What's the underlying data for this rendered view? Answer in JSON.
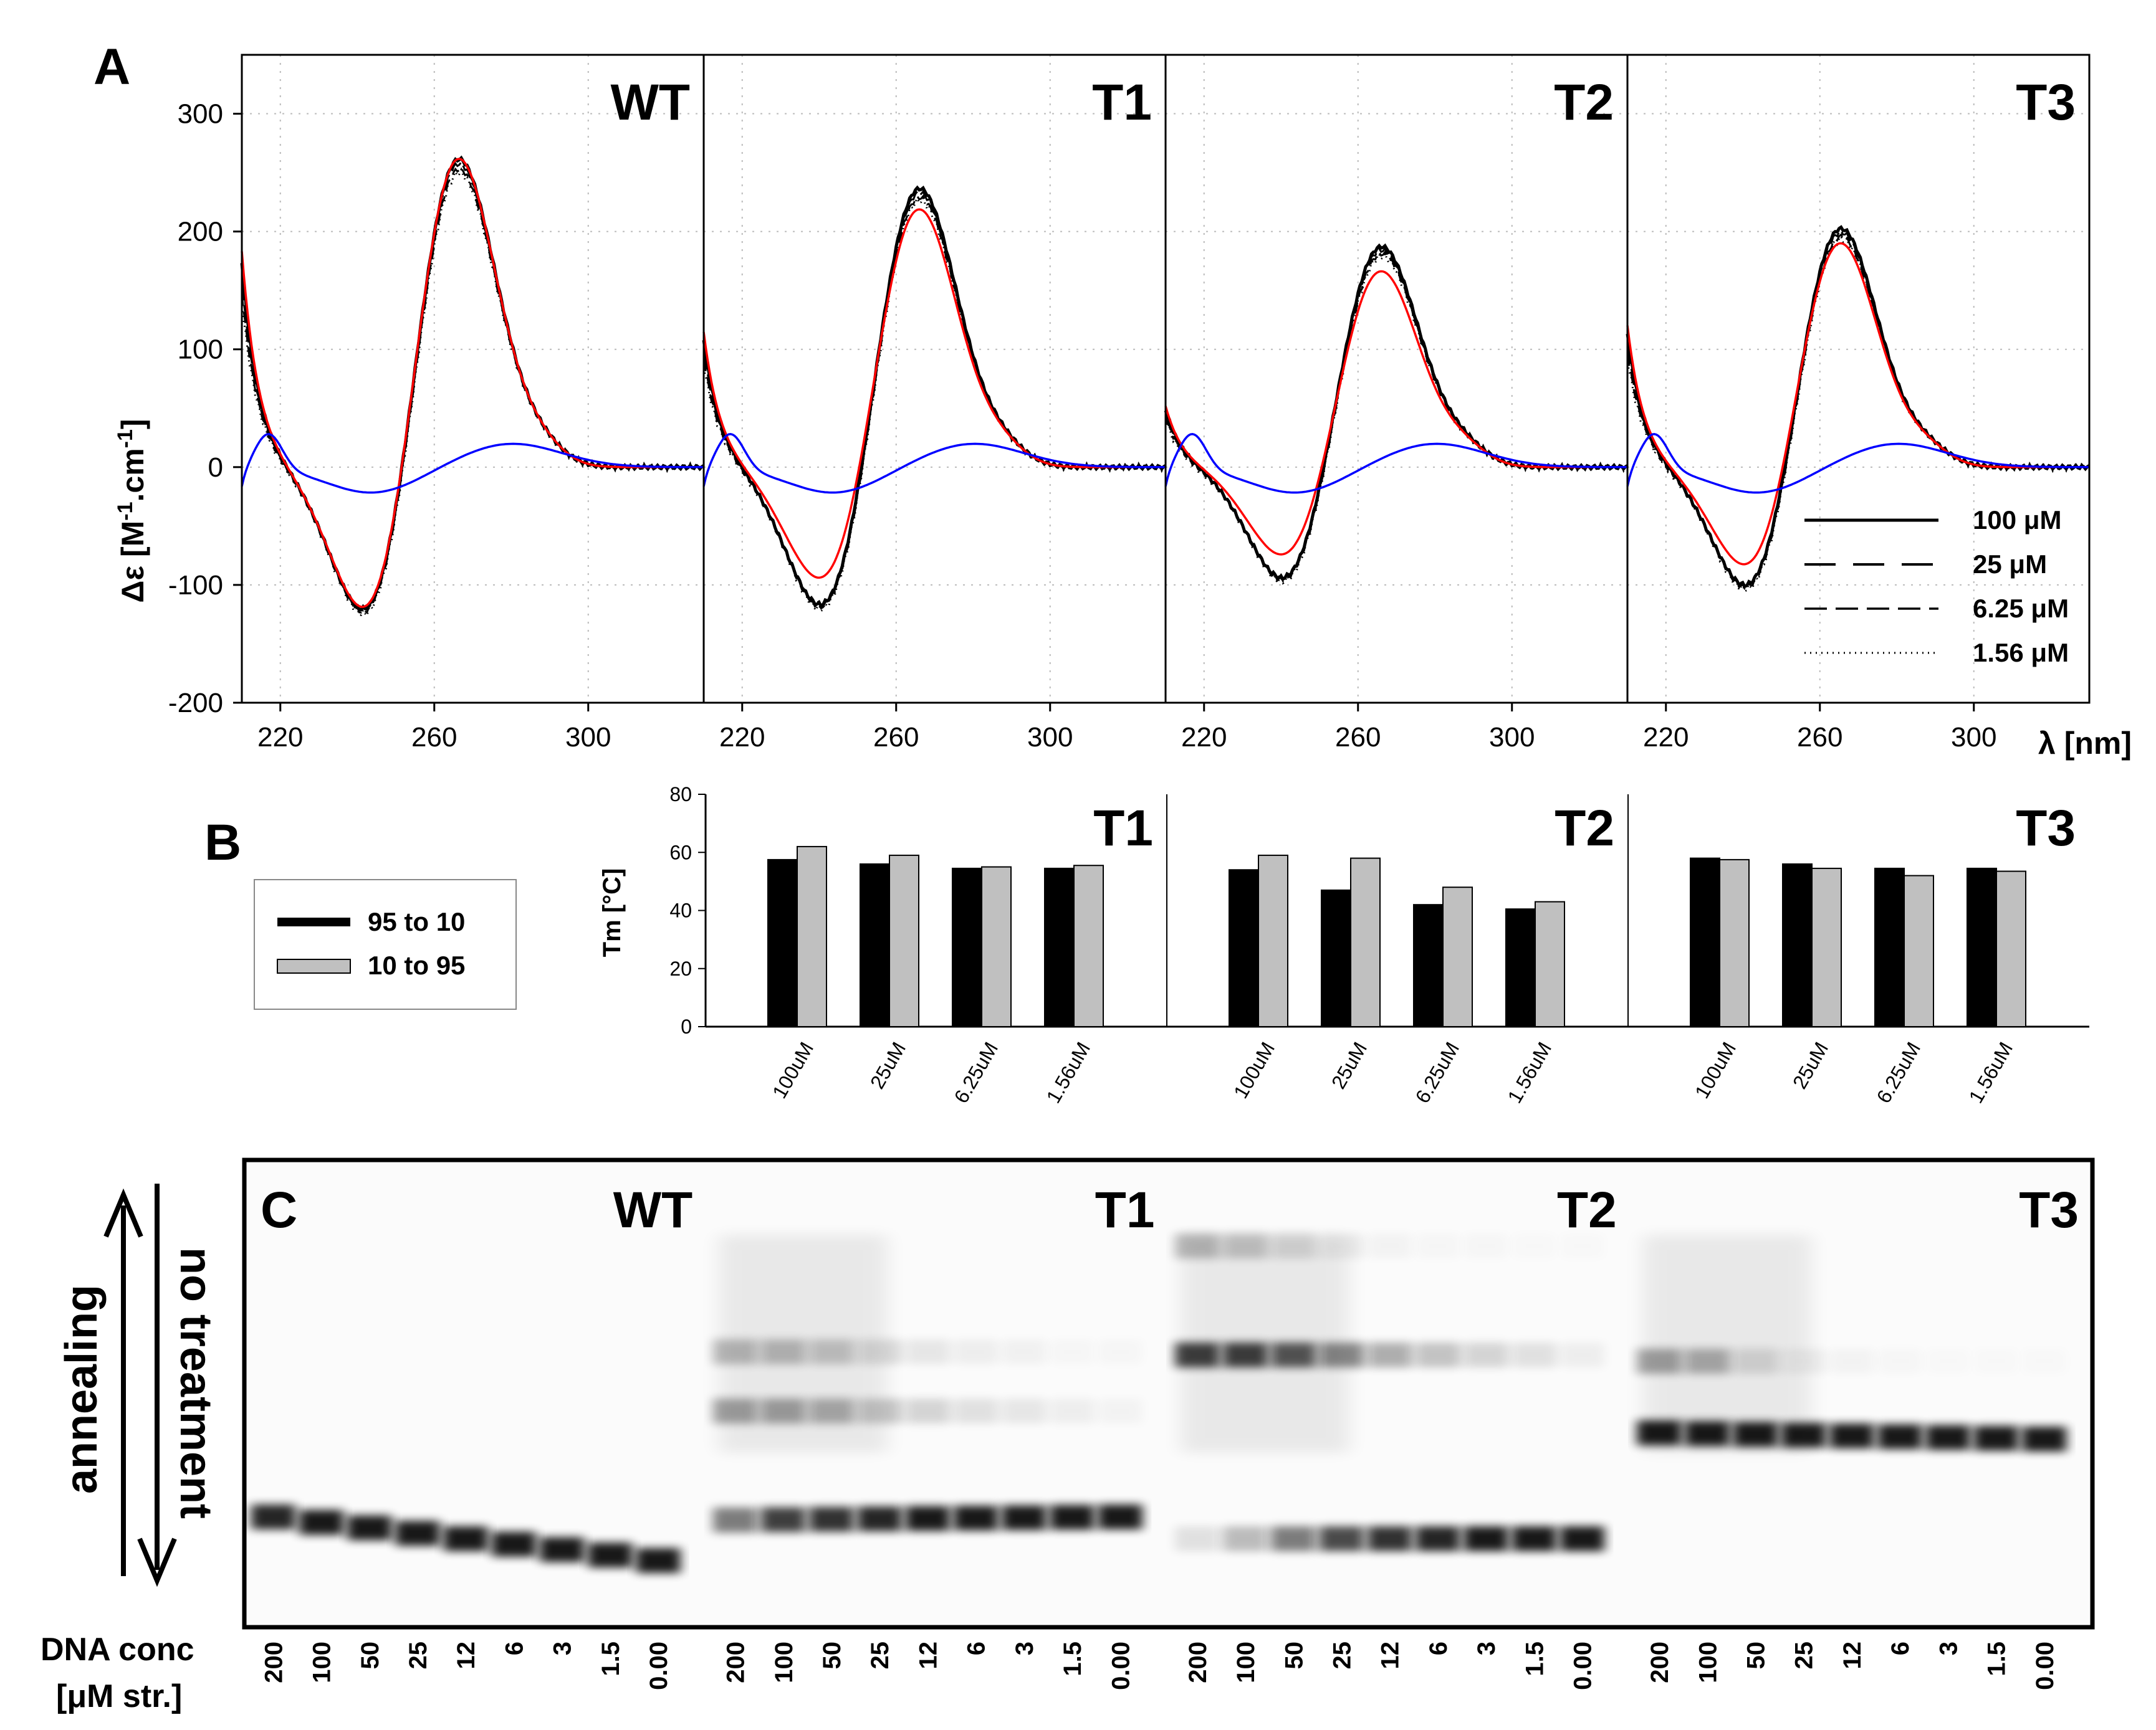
{
  "panel_labels": {
    "a": "A",
    "b": "B",
    "c": "C"
  },
  "chart_data": [
    {
      "type": "line",
      "panel": "A",
      "xlabel": "λ [nm]",
      "ylabel": "Δε [M-1.cm-1]",
      "xlim": [
        210,
        330
      ],
      "ylim": [
        -200,
        350
      ],
      "xticks": [
        220,
        260,
        300
      ],
      "yticks": [
        -200,
        -100,
        0,
        100,
        200,
        300
      ],
      "legend": {
        "placement": "bottom-right of T3 panel",
        "entries": [
          "100 μM",
          "25 μM",
          "6.25 μM",
          "1.56 μM"
        ]
      },
      "colors": {
        "concentration_series": "#000000",
        "red_trace": "#ff0000",
        "blue_trace": "#0000ff"
      },
      "subplots": [
        {
          "title": "WT",
          "peak_pos": [
            265,
            283
          ],
          "trough": [
            245,
            -152
          ],
          "red_peak": 283,
          "red_trough": -150,
          "start": 175
        },
        {
          "title": "T1",
          "peak_pos": [
            265,
            250
          ],
          "trough": [
            243,
            -137
          ],
          "red_peak": 230,
          "red_trough": -112,
          "start": 110
        },
        {
          "title": "T2",
          "peak_pos": [
            265,
            198
          ],
          "trough": [
            243,
            -110
          ],
          "red_peak": 175,
          "red_trough": -88,
          "start": 50
        },
        {
          "title": "T3",
          "peak_pos": [
            264,
            220
          ],
          "trough": [
            244,
            -125
          ],
          "red_peak": 205,
          "red_trough": -105,
          "start": 115
        }
      ]
    },
    {
      "type": "bar",
      "panel": "B",
      "ylabel": "Tm [°C]",
      "ylim": [
        0,
        80
      ],
      "yticks": [
        0,
        20,
        40,
        60,
        80
      ],
      "categories": [
        "100uM",
        "25uM",
        "6.25uM",
        "1.56uM"
      ],
      "legend": {
        "placement": "left",
        "entries": [
          "95 to 10",
          "10 to 95"
        ]
      },
      "colors": {
        "95 to 10": "#000000",
        "10 to 95": "#c0c0c0"
      },
      "subplots": [
        {
          "title": "T1",
          "series": [
            {
              "name": "95 to 10",
              "values": [
                57.5,
                56,
                54.5,
                54.5
              ]
            },
            {
              "name": "10 to 95",
              "values": [
                62,
                59,
                55,
                55.5
              ]
            }
          ]
        },
        {
          "title": "T2",
          "series": [
            {
              "name": "95 to 10",
              "values": [
                54,
                47,
                42,
                40.5
              ]
            },
            {
              "name": "10 to 95",
              "values": [
                59,
                58,
                48,
                43
              ]
            }
          ]
        },
        {
          "title": "T3",
          "series": [
            {
              "name": "95 to 10",
              "values": [
                58,
                56,
                54.5,
                54.5
              ]
            },
            {
              "name": "10 to 95",
              "values": [
                57.5,
                54.5,
                52,
                53.5
              ]
            }
          ]
        }
      ]
    }
  ],
  "gel": {
    "titles": [
      "WT",
      "T1",
      "T2",
      "T3"
    ],
    "left_labels": {
      "annealing": "annealing",
      "no_treatment": "no treatment"
    },
    "row_label_line1": "DNA conc",
    "row_label_line2": "[μM str.]",
    "lanes": [
      "200",
      "100",
      "50",
      "25",
      "12",
      "6",
      "3",
      "1.5",
      "0.00"
    ]
  }
}
